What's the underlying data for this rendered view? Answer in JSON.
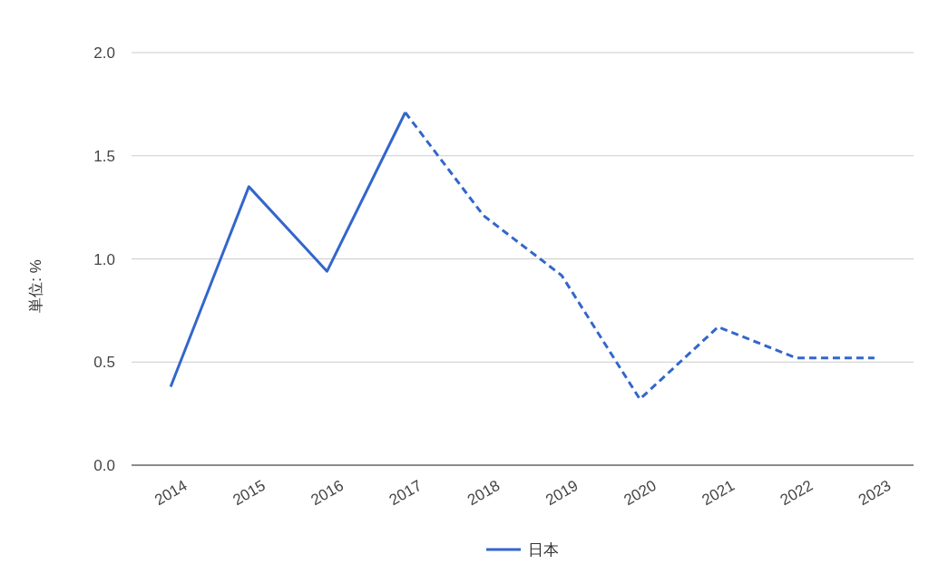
{
  "chart_data": {
    "type": "line",
    "ylabel": "単位: %",
    "categories": [
      "2014",
      "2015",
      "2016",
      "2017",
      "2018",
      "2019",
      "2020",
      "2021",
      "2022",
      "2023"
    ],
    "series": [
      {
        "name": "日本",
        "color": "#3366cc",
        "line_style": "solid",
        "values": [
          0.38,
          1.35,
          0.94,
          1.71,
          null,
          null,
          null,
          null,
          null,
          null
        ]
      },
      {
        "color": "#3366cc",
        "line_style": "dashed",
        "values": [
          null,
          null,
          null,
          1.71,
          1.21,
          0.92,
          0.32,
          0.67,
          0.52,
          0.52
        ]
      }
    ],
    "ylim": [
      0,
      2
    ],
    "yticks": [
      {
        "value": 0,
        "label": "0.0"
      },
      {
        "value": 0.5,
        "label": "0.5"
      },
      {
        "value": 1,
        "label": "1.0"
      },
      {
        "value": 1.5,
        "label": "1.5"
      },
      {
        "value": 2,
        "label": "2.0"
      }
    ],
    "grid": "y",
    "legend": "bottom",
    "marker": "none"
  }
}
